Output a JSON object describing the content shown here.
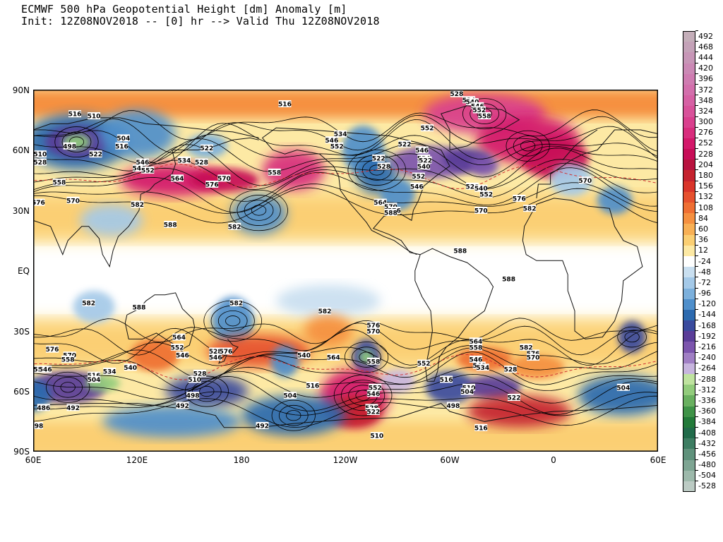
{
  "header": {
    "title": "ECMWF 500 hPa Geopotential Height [dm] Anomaly [m]",
    "subtitle": "Init: 12Z08NOV2018 -- [0] hr --> Valid Thu 12Z08NOV2018"
  },
  "axes": {
    "lat_labels": [
      "90N",
      "60N",
      "30N",
      "EQ",
      "30S",
      "60S",
      "90S"
    ],
    "lon_labels": [
      "60E",
      "120E",
      "180",
      "120W",
      "60W",
      "0",
      "60E"
    ]
  },
  "colorbar": {
    "levels": [
      "492",
      "468",
      "444",
      "420",
      "396",
      "372",
      "348",
      "324",
      "300",
      "276",
      "252",
      "228",
      "204",
      "180",
      "156",
      "132",
      "108",
      "84",
      "60",
      "36",
      "12",
      "-24",
      "-48",
      "-72",
      "-96",
      "-120",
      "-144",
      "-168",
      "-192",
      "-216",
      "-240",
      "-264",
      "-288",
      "-312",
      "-336",
      "-360",
      "-384",
      "-408",
      "-432",
      "-456",
      "-480",
      "-504",
      "-528"
    ],
    "colors": [
      "#c4aeb9",
      "#c4a2b8",
      "#c796b7",
      "#cb89b5",
      "#cf7cb1",
      "#d36fac",
      "#d661a4",
      "#d8529a",
      "#d9408e",
      "#d82d7d",
      "#d3186a",
      "#c70d57",
      "#b8133f",
      "#c5232e",
      "#d9352a",
      "#e6512e",
      "#ef6f33",
      "#f59040",
      "#f8b055",
      "#fbcf73",
      "#fde9a4",
      "#ffffff",
      "#c9dff0",
      "#a4c9e8",
      "#7cb0dc",
      "#4f8fcb",
      "#2c6aaf",
      "#3a4b9e",
      "#5a3d98",
      "#7c55ad",
      "#a07fc4",
      "#c7b5de",
      "#bfe39f",
      "#92cc7c",
      "#69b060",
      "#3f9348",
      "#237a3a",
      "#216b4a",
      "#3d7d62",
      "#5f917b",
      "#7ea593",
      "#9db9ab",
      "#bccbc4"
    ]
  },
  "contour_labels": [
    {
      "t": "516",
      "lon": 205,
      "lat": 83
    },
    {
      "t": "510",
      "lon": 95,
      "lat": 77
    },
    {
      "t": "516",
      "lon": 84,
      "lat": 78
    },
    {
      "t": "504",
      "lon": 112,
      "lat": 66
    },
    {
      "t": "516",
      "lon": 111,
      "lat": 62
    },
    {
      "t": "498",
      "lon": 81,
      "lat": 62
    },
    {
      "t": "510",
      "lon": 64,
      "lat": 58
    },
    {
      "t": "522",
      "lon": 96,
      "lat": 58
    },
    {
      "t": "528",
      "lon": 64,
      "lat": 54
    },
    {
      "t": "522",
      "lon": 160,
      "lat": 61
    },
    {
      "t": "528",
      "lon": 157,
      "lat": 54
    },
    {
      "t": "534",
      "lon": 147,
      "lat": 55
    },
    {
      "t": "546",
      "lon": 123,
      "lat": 54
    },
    {
      "t": "546",
      "lon": 121,
      "lat": 51
    },
    {
      "t": "552",
      "lon": 126,
      "lat": 50
    },
    {
      "t": "564",
      "lon": 143,
      "lat": 46
    },
    {
      "t": "570",
      "lon": 170,
      "lat": 46
    },
    {
      "t": "576",
      "lon": 163,
      "lat": 43
    },
    {
      "t": "558",
      "lon": 199,
      "lat": 49
    },
    {
      "t": "558",
      "lon": 75,
      "lat": 44
    },
    {
      "t": "570",
      "lon": 83,
      "lat": 35
    },
    {
      "t": "576",
      "lon": 63,
      "lat": 34
    },
    {
      "t": "582",
      "lon": 120,
      "lat": 33
    },
    {
      "t": "588",
      "lon": 139,
      "lat": 23
    },
    {
      "t": "582",
      "lon": 176,
      "lat": 22
    },
    {
      "t": "546",
      "lon": 232,
      "lat": 65
    },
    {
      "t": "552",
      "lon": 235,
      "lat": 62
    },
    {
      "t": "534",
      "lon": 237,
      "lat": 68
    },
    {
      "t": "522",
      "lon": 259,
      "lat": 56
    },
    {
      "t": "528",
      "lon": 262,
      "lat": 52
    },
    {
      "t": "564",
      "lon": 260,
      "lat": 34
    },
    {
      "t": "570",
      "lon": 266,
      "lat": 32
    },
    {
      "t": "576",
      "lon": 268,
      "lat": 30
    },
    {
      "t": "552",
      "lon": 287,
      "lat": 71
    },
    {
      "t": "528",
      "lon": 304,
      "lat": 88
    },
    {
      "t": "534",
      "lon": 311,
      "lat": 85
    },
    {
      "t": "540",
      "lon": 313,
      "lat": 84
    },
    {
      "t": "546",
      "lon": 316,
      "lat": 82
    },
    {
      "t": "552",
      "lon": 317,
      "lat": 80
    },
    {
      "t": "558",
      "lon": 320,
      "lat": 77
    },
    {
      "t": "522",
      "lon": 274,
      "lat": 63
    },
    {
      "t": "546",
      "lon": 284,
      "lat": 60
    },
    {
      "t": "534",
      "lon": 285,
      "lat": 56
    },
    {
      "t": "522",
      "lon": 286,
      "lat": 55
    },
    {
      "t": "540",
      "lon": 285,
      "lat": 52
    },
    {
      "t": "552",
      "lon": 282,
      "lat": 47
    },
    {
      "t": "546",
      "lon": 281,
      "lat": 42
    },
    {
      "t": "528",
      "lon": 313,
      "lat": 42
    },
    {
      "t": "540",
      "lon": 318,
      "lat": 41
    },
    {
      "t": "552",
      "lon": 321,
      "lat": 38
    },
    {
      "t": "570",
      "lon": 318,
      "lat": 30
    },
    {
      "t": "576",
      "lon": 340,
      "lat": 36
    },
    {
      "t": "582",
      "lon": 346,
      "lat": 31
    },
    {
      "t": "588",
      "lon": 266,
      "lat": 29
    },
    {
      "t": "588",
      "lon": 306,
      "lat": 10
    },
    {
      "t": "588",
      "lon": 334,
      "lat": -4
    },
    {
      "t": "570",
      "lon": 18,
      "lat": 45
    },
    {
      "t": "582",
      "lon": 92,
      "lat": -16
    },
    {
      "t": "588",
      "lon": 121,
      "lat": -18
    },
    {
      "t": "582",
      "lon": 177,
      "lat": -16
    },
    {
      "t": "582",
      "lon": 228,
      "lat": -20
    },
    {
      "t": "576",
      "lon": 256,
      "lat": -27
    },
    {
      "t": "570",
      "lon": 256,
      "lat": -30
    },
    {
      "t": "564",
      "lon": 144,
      "lat": -33
    },
    {
      "t": "552",
      "lon": 143,
      "lat": -38
    },
    {
      "t": "546",
      "lon": 146,
      "lat": -42
    },
    {
      "t": "576",
      "lon": 71,
      "lat": -39
    },
    {
      "t": "570",
      "lon": 81,
      "lat": -42
    },
    {
      "t": "558",
      "lon": 80,
      "lat": -44
    },
    {
      "t": "528",
      "lon": 165,
      "lat": -40
    },
    {
      "t": "576",
      "lon": 171,
      "lat": -40
    },
    {
      "t": "546",
      "lon": 165,
      "lat": -43
    },
    {
      "t": "540",
      "lon": 116,
      "lat": -48
    },
    {
      "t": "534",
      "lon": 104,
      "lat": -50
    },
    {
      "t": "540",
      "lon": 216,
      "lat": -42
    },
    {
      "t": "564",
      "lon": 233,
      "lat": -43
    },
    {
      "t": "558",
      "lon": 256,
      "lat": -45
    },
    {
      "t": "552",
      "lon": 257,
      "lat": -58
    },
    {
      "t": "546",
      "lon": 256,
      "lat": -61
    },
    {
      "t": "528",
      "lon": 156,
      "lat": -51
    },
    {
      "t": "510",
      "lon": 153,
      "lat": -54
    },
    {
      "t": "516",
      "lon": 95,
      "lat": -52
    },
    {
      "t": "504",
      "lon": 95,
      "lat": -54
    },
    {
      "t": "516",
      "lon": 221,
      "lat": -57
    },
    {
      "t": "504",
      "lon": 208,
      "lat": -62
    },
    {
      "t": "498",
      "lon": 152,
      "lat": -62
    },
    {
      "t": "492",
      "lon": 146,
      "lat": -67
    },
    {
      "t": "492",
      "lon": 83,
      "lat": -68
    },
    {
      "t": "486",
      "lon": 66,
      "lat": -68
    },
    {
      "t": "498",
      "lon": 62,
      "lat": -77
    },
    {
      "t": "492",
      "lon": 192,
      "lat": -77
    },
    {
      "t": "528",
      "lon": 255,
      "lat": -68
    },
    {
      "t": "522",
      "lon": 256,
      "lat": -70
    },
    {
      "t": "510",
      "lon": 258,
      "lat": -82
    },
    {
      "t": "516",
      "lon": 298,
      "lat": -54
    },
    {
      "t": "498",
      "lon": 302,
      "lat": -67
    },
    {
      "t": "510",
      "lon": 311,
      "lat": -58
    },
    {
      "t": "504",
      "lon": 310,
      "lat": -60
    },
    {
      "t": "516",
      "lon": 318,
      "lat": -78
    },
    {
      "t": "522",
      "lon": 337,
      "lat": -63
    },
    {
      "t": "504",
      "lon": 400,
      "lat": -58
    },
    {
      "t": "552",
      "lon": 285,
      "lat": -46
    },
    {
      "t": "564",
      "lon": 315,
      "lat": -35
    },
    {
      "t": "558",
      "lon": 315,
      "lat": -38
    },
    {
      "t": "546",
      "lon": 315,
      "lat": -44
    },
    {
      "t": "540",
      "lon": 317,
      "lat": -47
    },
    {
      "t": "534",
      "lon": 319,
      "lat": -48
    },
    {
      "t": "528",
      "lon": 335,
      "lat": -49
    },
    {
      "t": "582",
      "lon": 344,
      "lat": -38
    },
    {
      "t": "576",
      "lon": 348,
      "lat": -41
    },
    {
      "t": "570",
      "lon": 348,
      "lat": -43
    },
    {
      "t": "552",
      "lon": 64,
      "lat": -49
    },
    {
      "t": "546",
      "lon": 67,
      "lat": -49
    },
    {
      "t": "540",
      "lon": 57,
      "lat": -54
    }
  ]
}
